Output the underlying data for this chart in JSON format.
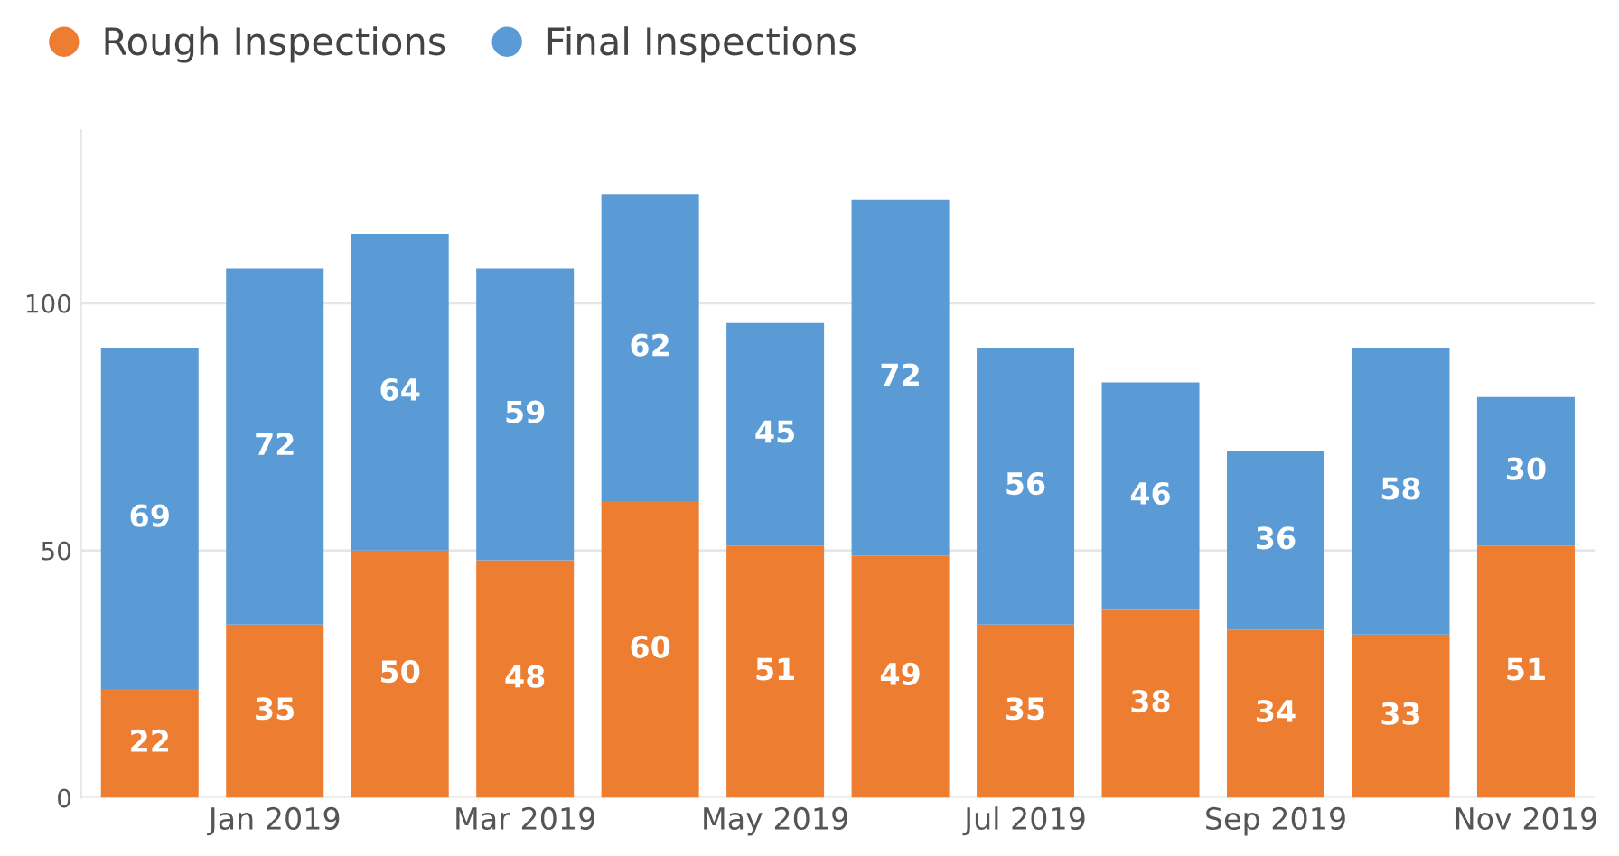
{
  "chart_data": {
    "type": "bar",
    "stacked": true,
    "categories": [
      null,
      "Jan 2019",
      null,
      "Mar 2019",
      null,
      "May 2019",
      null,
      "Jul 2019",
      null,
      "Sep 2019",
      null,
      "Nov 2019"
    ],
    "series": [
      {
        "name": "Rough Inspections",
        "color": "#ed7d31",
        "values": [
          22,
          35,
          50,
          48,
          60,
          51,
          49,
          35,
          38,
          34,
          33,
          51
        ]
      },
      {
        "name": "Final Inspections",
        "color": "#5b9bd5",
        "values": [
          69,
          72,
          64,
          59,
          62,
          45,
          72,
          56,
          46,
          36,
          58,
          30
        ]
      }
    ],
    "ylim": [
      0,
      135
    ],
    "yticks": [
      0,
      50,
      100
    ],
    "grid": "y",
    "legend": "top left",
    "marker": "circle",
    "data_labels": true
  }
}
